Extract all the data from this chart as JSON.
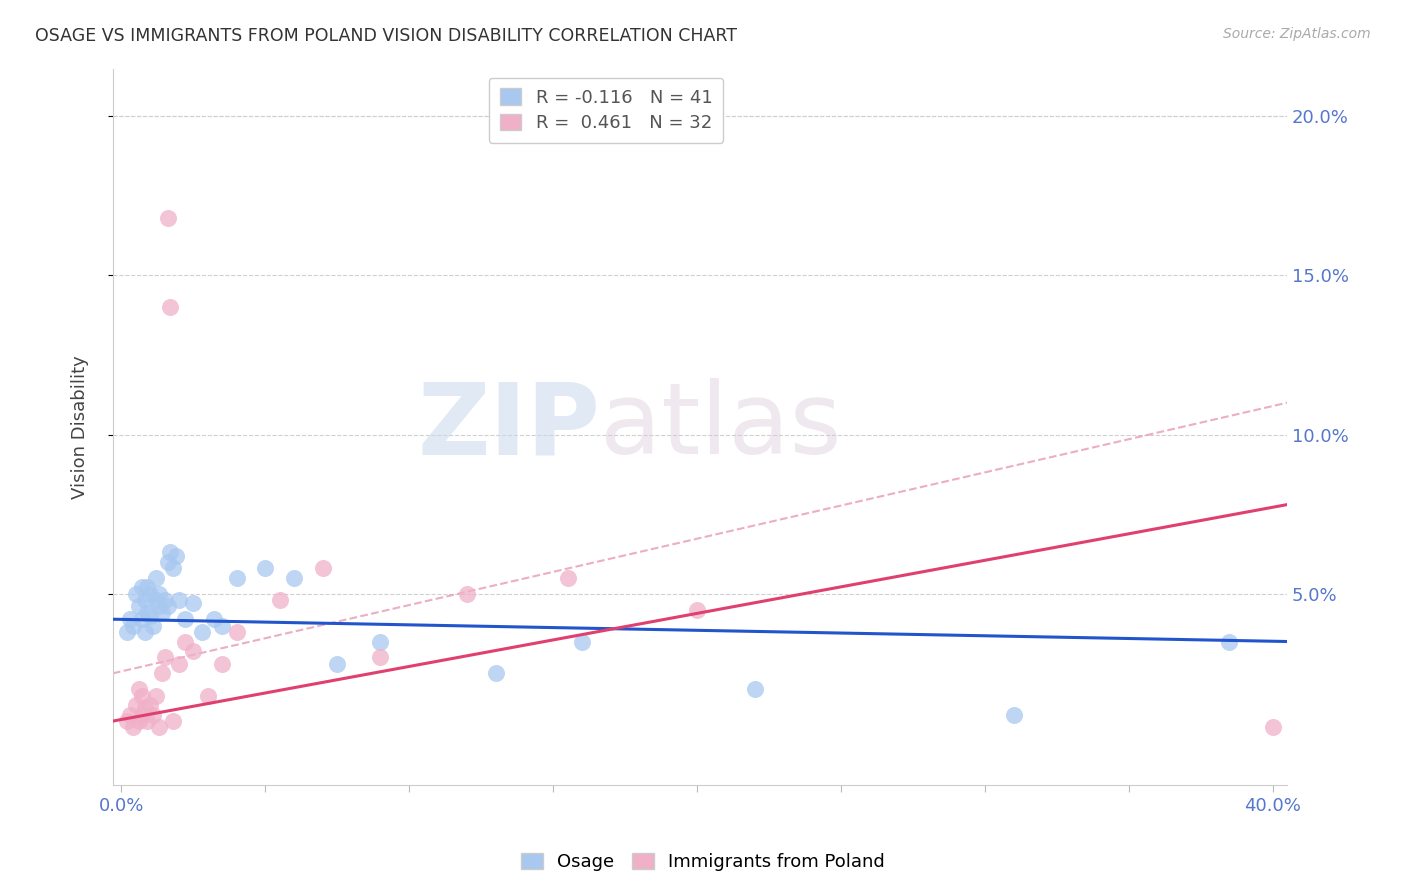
{
  "title": "OSAGE VS IMMIGRANTS FROM POLAND VISION DISABILITY CORRELATION CHART",
  "source": "Source: ZipAtlas.com",
  "ylabel": "Vision Disability",
  "ytick_labels": [
    "20.0%",
    "15.0%",
    "10.0%",
    "5.0%"
  ],
  "ytick_values": [
    0.2,
    0.15,
    0.1,
    0.05
  ],
  "xlim": [
    -0.003,
    0.405
  ],
  "ylim": [
    -0.01,
    0.215
  ],
  "legend_r1": "R = -0.116",
  "legend_n1": "N = 41",
  "legend_r2": "R =  0.461",
  "legend_n2": "N = 32",
  "osage_color": "#a8c8f0",
  "poland_color": "#f0b0c8",
  "osage_line_color": "#2255cc",
  "poland_line_color": "#e04070",
  "poland_dashed_color": "#e8a0b8",
  "background_color": "#ffffff",
  "watermark_zip": "ZIP",
  "watermark_atlas": "atlas",
  "osage_x": [
    0.002,
    0.003,
    0.004,
    0.005,
    0.006,
    0.007,
    0.007,
    0.008,
    0.008,
    0.009,
    0.009,
    0.01,
    0.01,
    0.011,
    0.012,
    0.012,
    0.013,
    0.013,
    0.014,
    0.015,
    0.016,
    0.016,
    0.017,
    0.018,
    0.019,
    0.02,
    0.022,
    0.025,
    0.028,
    0.032,
    0.035,
    0.04,
    0.05,
    0.06,
    0.075,
    0.09,
    0.13,
    0.16,
    0.22,
    0.31,
    0.385
  ],
  "osage_y": [
    0.038,
    0.042,
    0.04,
    0.05,
    0.046,
    0.042,
    0.052,
    0.038,
    0.048,
    0.044,
    0.052,
    0.043,
    0.05,
    0.04,
    0.048,
    0.055,
    0.046,
    0.05,
    0.044,
    0.048,
    0.046,
    0.06,
    0.063,
    0.058,
    0.062,
    0.048,
    0.042,
    0.047,
    0.038,
    0.042,
    0.04,
    0.055,
    0.058,
    0.055,
    0.028,
    0.035,
    0.025,
    0.035,
    0.02,
    0.012,
    0.035
  ],
  "poland_x": [
    0.002,
    0.003,
    0.004,
    0.005,
    0.006,
    0.006,
    0.007,
    0.007,
    0.008,
    0.009,
    0.01,
    0.011,
    0.012,
    0.013,
    0.014,
    0.015,
    0.016,
    0.017,
    0.018,
    0.02,
    0.022,
    0.025,
    0.03,
    0.035,
    0.04,
    0.055,
    0.07,
    0.09,
    0.12,
    0.155,
    0.2,
    0.4
  ],
  "poland_y": [
    0.01,
    0.012,
    0.008,
    0.015,
    0.01,
    0.02,
    0.012,
    0.018,
    0.014,
    0.01,
    0.015,
    0.012,
    0.018,
    0.008,
    0.025,
    0.03,
    0.168,
    0.14,
    0.01,
    0.028,
    0.035,
    0.032,
    0.018,
    0.028,
    0.038,
    0.048,
    0.058,
    0.03,
    0.05,
    0.055,
    0.045,
    0.008
  ],
  "osage_trend": [
    0.042,
    0.035
  ],
  "poland_trend": [
    0.01,
    0.078
  ],
  "poland_dashed": [
    0.025,
    0.11
  ]
}
